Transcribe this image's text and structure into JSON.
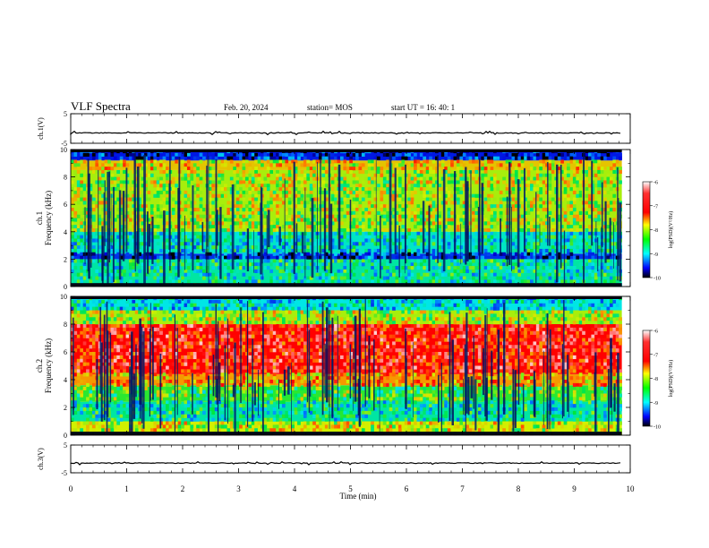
{
  "header": {
    "title": "VLF Spectra",
    "date": "Feb. 20, 2024",
    "station": "station= MOS",
    "start_ut": "start  UT  =   16: 40: 1"
  },
  "chart_data": [
    {
      "type": "line",
      "panel": "ch1-waveform",
      "ylabel": "ch.1(V)",
      "ylim": [
        -5,
        5
      ],
      "yticks": [
        "5",
        "-5"
      ],
      "series": [
        {
          "values_description_free": true,
          "y_level": -1.5
        }
      ]
    },
    {
      "type": "heatmap",
      "panel": "ch1-spectrogram",
      "ylabel": "ch.1\nFrequency (kHz)",
      "ylabel_line1": "ch.1",
      "ylabel_line2": "Frequency (kHz)",
      "ylim": [
        0,
        10
      ],
      "yticks": [
        "0",
        "2",
        "4",
        "6",
        "8",
        "10"
      ],
      "colorbar": {
        "label": "log(PSD)(V²/Hz)",
        "ticks": [
          "-6",
          "-7",
          "-8",
          "-9",
          "-10"
        ],
        "range": [
          -10,
          -6
        ]
      },
      "bands": [
        {
          "f_lo": 0,
          "f_hi": 2,
          "level": -8.6
        },
        {
          "f_lo": 2,
          "f_hi": 2.4,
          "level": -9.5
        },
        {
          "f_lo": 2.4,
          "f_hi": 4,
          "level": -8.7
        },
        {
          "f_lo": 4,
          "f_hi": 8.5,
          "level": -7.9
        },
        {
          "f_lo": 8.5,
          "f_hi": 9.2,
          "level": -7.6
        },
        {
          "f_lo": 9.2,
          "f_hi": 10,
          "level": -9.6
        }
      ]
    },
    {
      "type": "heatmap",
      "panel": "ch2-spectrogram",
      "ylabel_line1": "ch.2",
      "ylabel_line2": "Frequency (kHz)",
      "ylim": [
        0,
        10
      ],
      "yticks": [
        "0",
        "2",
        "4",
        "6",
        "8",
        "10"
      ],
      "colorbar": {
        "label": "log(PSD)(V²/Hz)",
        "ticks": [
          "-6",
          "-7",
          "-8",
          "-9",
          "-10"
        ],
        "range": [
          -10,
          -6
        ]
      },
      "bands": [
        {
          "f_lo": 0,
          "f_hi": 1,
          "level": -7.8
        },
        {
          "f_lo": 1,
          "f_hi": 2.4,
          "level": -8.6
        },
        {
          "f_lo": 2.4,
          "f_hi": 3.6,
          "level": -8.2
        },
        {
          "f_lo": 3.6,
          "f_hi": 4.4,
          "level": -7.4
        },
        {
          "f_lo": 4.4,
          "f_hi": 8,
          "level": -6.8
        },
        {
          "f_lo": 8,
          "f_hi": 9,
          "level": -7.9
        },
        {
          "f_lo": 9,
          "f_hi": 10,
          "level": -8.8
        }
      ]
    },
    {
      "type": "line",
      "panel": "ch3-waveform",
      "ylabel": "ch.3(V)",
      "ylim": [
        -5,
        5
      ],
      "yticks": [
        "5",
        "-5"
      ],
      "series": [
        {
          "y_level": -1.5
        }
      ]
    }
  ],
  "xaxis": {
    "label": "Time  (min)",
    "range": [
      0,
      10
    ],
    "ticks": [
      "0",
      "1",
      "2",
      "3",
      "4",
      "5",
      "6",
      "7",
      "8",
      "9",
      "10"
    ],
    "data_end": 9.85
  },
  "colors": {
    "scale": [
      "#ffffff",
      "#ff0000",
      "#ffff00",
      "#00ff00",
      "#00ffff",
      "#0000ff",
      "#000000"
    ]
  }
}
